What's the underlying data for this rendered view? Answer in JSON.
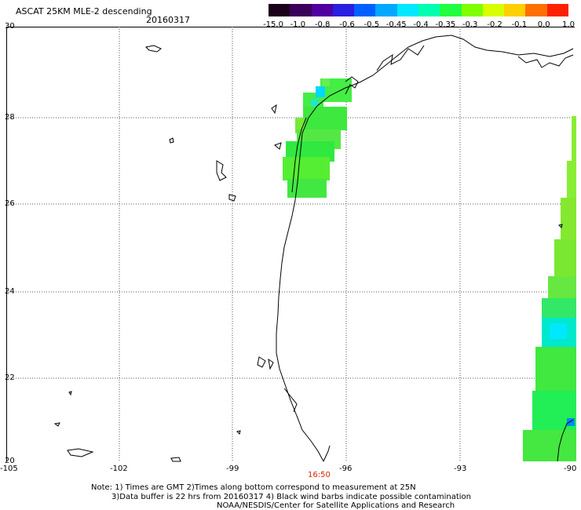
{
  "header": {
    "title": "ASCAT 25KM MLE-2 descending",
    "date": "20160317"
  },
  "colorbar": {
    "labels": [
      "-15.0",
      "-1.0",
      "-0.8",
      "-0.6",
      "-0.5",
      "-0.45",
      "-0.4",
      "-0.35",
      "-0.3",
      "-0.2",
      "-0.1",
      "0.0",
      "1.0"
    ],
    "colors": [
      "#1a001a",
      "#3a005a",
      "#5000a0",
      "#2a1ee0",
      "#0060ff",
      "#00a8ff",
      "#00e8ff",
      "#00ffb0",
      "#20ff40",
      "#80ff00",
      "#d8ff00",
      "#ffd000",
      "#ff7000",
      "#ff2000"
    ]
  },
  "axes": {
    "longitude_labels": [
      "-105",
      "-102",
      "-99",
      "-96",
      "-93",
      "-90"
    ],
    "latitude_labels": [
      "30",
      "28",
      "26",
      "24",
      "22",
      "20"
    ]
  },
  "time_label": "16:50",
  "notes": {
    "line1": "Note: 1) Times are GMT 2)Times along bottom correspond to measurement at 25N",
    "line2": "3)Data buffer is 22 hrs from 20160317 4) Black wind barbs indicate possible contamination",
    "line3": "NOAA/NESDIS/Center for Satellite Applications and Research"
  }
}
